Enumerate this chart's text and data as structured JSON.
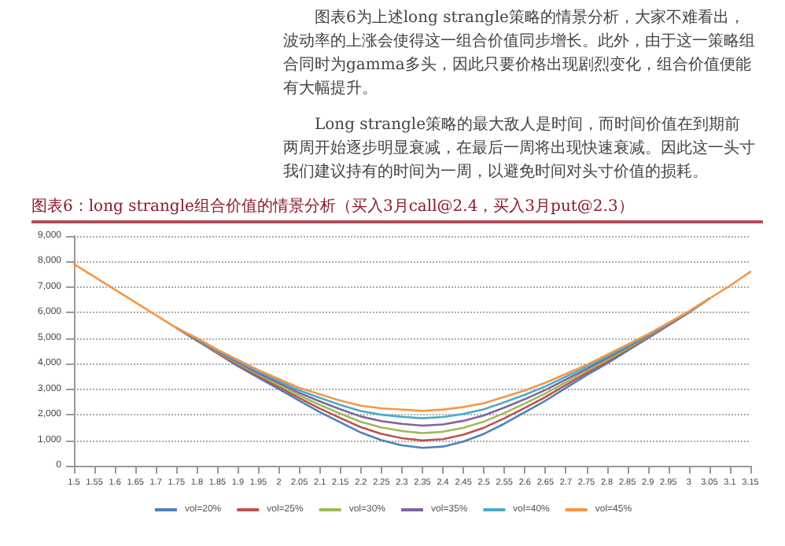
{
  "chart_data": {
    "type": "line",
    "title": "图表6：long strangle组合价值的情景分析（买入3月call@2.4，买入3月put@2.3）",
    "annotations": [
      "图表6为上述long strangle策略的情景分析，大家不难看出，波动率的上涨会使得这一组合价值同步增长。此外，由于这一策略组合同时为gamma多头，因此只要价格出现剧烈变化，组合价值便能有大幅提升。",
      "Long strangle策略的最大敌人是时间，而时间价值在到期前两周开始逐步明显衰减，在最后一周将出现快速衰减。因此这一头寸我们建议持有的时间为一周，以避免时间对头寸价值的损耗。"
    ],
    "categories": [
      "1.5",
      "1.55",
      "1.6",
      "1.65",
      "1.7",
      "1.75",
      "1.8",
      "1.85",
      "1.9",
      "1.95",
      "2",
      "2.05",
      "2.1",
      "2.15",
      "2.2",
      "2.25",
      "2.3",
      "2.35",
      "2.4",
      "2.45",
      "2.5",
      "2.55",
      "2.6",
      "2.65",
      "2.7",
      "2.75",
      "2.8",
      "2.85",
      "2.9",
      "2.95",
      "3",
      "3.05",
      "3.1",
      "3.15"
    ],
    "series": [
      {
        "name": "vol=20%",
        "color": "#4f81bd",
        "values": [
          null,
          null,
          null,
          null,
          null,
          5400,
          4900,
          4400,
          3900,
          3450,
          3000,
          2550,
          2100,
          1700,
          1300,
          1000,
          800,
          700,
          750,
          950,
          1250,
          1650,
          2100,
          2550,
          3050,
          3550,
          4000,
          4500,
          5000,
          5500,
          6000,
          6550,
          null,
          null
        ]
      },
      {
        "name": "vol=25%",
        "color": "#c0504d",
        "values": [
          null,
          null,
          null,
          null,
          null,
          5400,
          4920,
          4430,
          3950,
          3510,
          3080,
          2650,
          2240,
          1870,
          1510,
          1250,
          1080,
          990,
          1040,
          1220,
          1490,
          1860,
          2270,
          2690,
          3160,
          3630,
          4070,
          4550,
          5030,
          5520,
          6010,
          6550,
          null,
          null
        ]
      },
      {
        "name": "vol=30%",
        "color": "#9bbb59",
        "values": [
          null,
          null,
          null,
          null,
          null,
          5400,
          4940,
          4460,
          4000,
          3570,
          3160,
          2750,
          2380,
          2040,
          1720,
          1500,
          1360,
          1280,
          1330,
          1490,
          1730,
          2070,
          2440,
          2830,
          3270,
          3710,
          4140,
          4600,
          5060,
          5540,
          6020,
          6550,
          null,
          null
        ]
      },
      {
        "name": "vol=35%",
        "color": "#8064a2",
        "values": [
          null,
          null,
          null,
          null,
          null,
          5400,
          4960,
          4490,
          4050,
          3630,
          3240,
          2850,
          2520,
          2210,
          1930,
          1750,
          1640,
          1570,
          1620,
          1760,
          1970,
          2280,
          2610,
          2970,
          3380,
          3790,
          4210,
          4650,
          5090,
          5560,
          6030,
          6550,
          null,
          null
        ]
      },
      {
        "name": "vol=40%",
        "color": "#4bacc6",
        "values": [
          null,
          null,
          null,
          null,
          null,
          5400,
          4980,
          4520,
          4100,
          3690,
          3320,
          2950,
          2660,
          2380,
          2140,
          2000,
          1920,
          1860,
          1910,
          2030,
          2210,
          2490,
          2780,
          3110,
          3490,
          3870,
          4280,
          4700,
          5120,
          5580,
          6040,
          6550,
          null,
          null
        ]
      },
      {
        "name": "vol=45%",
        "color": "#f79646",
        "values": [
          7900,
          7400,
          6900,
          6400,
          5900,
          5400,
          5000,
          4550,
          4150,
          3750,
          3400,
          3050,
          2800,
          2550,
          2350,
          2250,
          2200,
          2150,
          2200,
          2300,
          2450,
          2700,
          2950,
          3250,
          3600,
          3950,
          4350,
          4750,
          5150,
          5600,
          6050,
          6550,
          7050,
          7600
        ]
      }
    ],
    "ylim": [
      0,
      9000
    ],
    "yticks": [
      0,
      {
        "value": 1000,
        "label": "1,000"
      },
      {
        "value": 2000,
        "label": "2,000"
      },
      {
        "value": 3000,
        "label": "3,000"
      },
      {
        "value": 4000,
        "label": "4,000"
      },
      {
        "value": 5000,
        "label": "5,000"
      },
      {
        "value": 6000,
        "label": "6,000"
      },
      {
        "value": 7000,
        "label": "7,000"
      },
      {
        "value": 8000,
        "label": "8,000"
      },
      {
        "value": 9000,
        "label": "9,000"
      }
    ],
    "grid": "y",
    "legend": "bottom",
    "marker": "none",
    "line_style": "solid"
  }
}
